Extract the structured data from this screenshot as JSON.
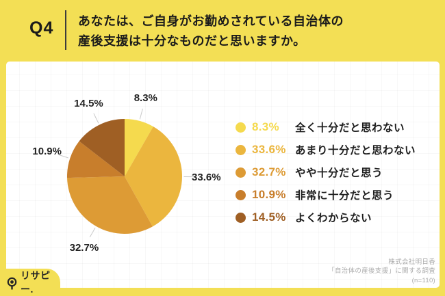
{
  "page": {
    "bg_color": "#F3DF55"
  },
  "header": {
    "question_no": "Q4",
    "question_line1": "あなたは、ご自身がお勤めされている自治体の",
    "question_line2": "産後支援は十分なものだと思いますか。"
  },
  "chart_data": {
    "type": "pie",
    "title": "あなたは、ご自身がお勤めされている自治体の産後支援は十分なものだと思いますか。",
    "start_angle_deg": 0,
    "direction": "clockwise",
    "categories": [
      "全く十分だと思わない",
      "あまり十分だと思わない",
      "やや十分だと思う",
      "非常に十分だと思う",
      "よくわからない"
    ],
    "values": [
      8.3,
      33.6,
      32.7,
      10.9,
      14.5
    ],
    "value_labels": [
      "8.3%",
      "33.6%",
      "32.7%",
      "10.9%",
      "14.5%"
    ],
    "colors": [
      "#F5DA4E",
      "#EBB63E",
      "#DD9B35",
      "#C87E2C",
      "#9F5F24"
    ],
    "legend_position": "right",
    "leader_line_color": "#c9c9c9"
  },
  "footer": {
    "logo_text": "リサピー.",
    "source_line1": "株式会社明日香",
    "source_line2": "「自治体の産後支援」に関する調査",
    "source_line3": "(n=110)"
  }
}
